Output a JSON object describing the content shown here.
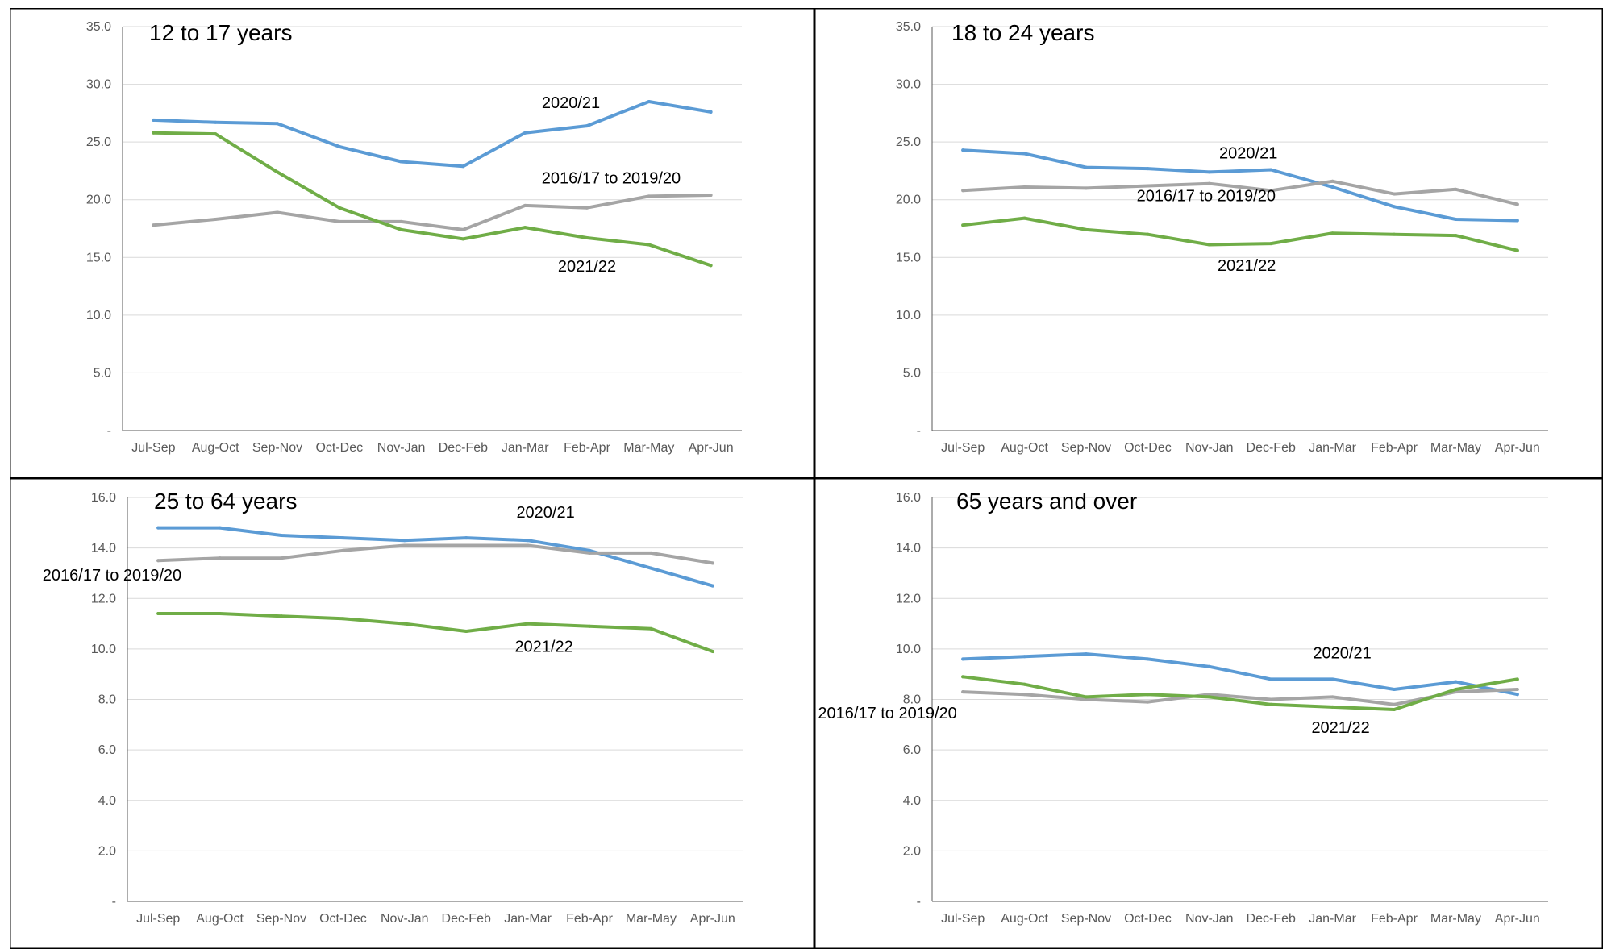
{
  "colors": {
    "2020/21": "#5b9bd5",
    "2016/17 to 2019/20": "#a5a5a5",
    "2021/22": "#70ad47",
    "grid": "#d9d9d9",
    "axis": "#595959",
    "border": "#000000"
  },
  "chart_data": [
    {
      "type": "line",
      "title": "12 to 17 years",
      "categories": [
        "Jul-Sep",
        "Aug-Oct",
        "Sep-Nov",
        "Oct-Dec",
        "Nov-Jan",
        "Dec-Feb",
        "Jan-Mar",
        "Feb-Apr",
        "Mar-May",
        "Apr-Jun"
      ],
      "ylim": [
        0,
        35
      ],
      "yticks": [
        0,
        5,
        10,
        15,
        20,
        25,
        30,
        35
      ],
      "ytick_labels": [
        "-",
        "5.0",
        "10.0",
        "15.0",
        "20.0",
        "25.0",
        "30.0",
        "35.0"
      ],
      "grid": true,
      "series": [
        {
          "name": "2020/21",
          "values": [
            26.9,
            26.7,
            26.6,
            24.6,
            23.3,
            22.9,
            25.8,
            26.4,
            28.5,
            27.6
          ]
        },
        {
          "name": "2016/17 to 2019/20",
          "values": [
            17.8,
            18.3,
            18.9,
            18.1,
            18.1,
            17.4,
            19.5,
            19.3,
            20.3,
            20.4
          ]
        },
        {
          "name": "2021/22",
          "values": [
            25.8,
            25.7,
            22.4,
            19.3,
            17.4,
            16.6,
            17.6,
            16.7,
            16.1,
            14.3
          ]
        }
      ],
      "series_labels": [
        {
          "text": "2020/21",
          "series": "2020/21",
          "index": 7
        },
        {
          "text": "2016/17 to 2019/20",
          "series": "2016/17 to 2019/20",
          "index": 7
        },
        {
          "text": "2021/22",
          "series": "2021/22",
          "index": 7
        }
      ]
    },
    {
      "type": "line",
      "title": "18 to 24 years",
      "categories": [
        "Jul-Sep",
        "Aug-Oct",
        "Sep-Nov",
        "Oct-Dec",
        "Nov-Jan",
        "Dec-Feb",
        "Jan-Mar",
        "Feb-Apr",
        "Mar-May",
        "Apr-Jun"
      ],
      "ylim": [
        0,
        35
      ],
      "yticks": [
        0,
        5,
        10,
        15,
        20,
        25,
        30,
        35
      ],
      "ytick_labels": [
        "-",
        "5.0",
        "10.0",
        "15.0",
        "20.0",
        "25.0",
        "30.0",
        "35.0"
      ],
      "grid": true,
      "series": [
        {
          "name": "2020/21",
          "values": [
            24.3,
            24.0,
            22.8,
            22.7,
            22.4,
            22.6,
            21.1,
            19.4,
            18.3,
            18.2
          ]
        },
        {
          "name": "2016/17 to 2019/20",
          "values": [
            20.8,
            21.1,
            21.0,
            21.2,
            21.4,
            20.8,
            21.6,
            20.5,
            20.9,
            19.6
          ]
        },
        {
          "name": "2021/22",
          "values": [
            17.8,
            18.4,
            17.4,
            17.0,
            16.1,
            16.2,
            17.1,
            17.0,
            16.9,
            15.6
          ]
        }
      ],
      "series_labels": [
        {
          "text": "2020/21",
          "series": "2020/21",
          "index": 5
        },
        {
          "text": "2016/17 to 2019/20",
          "series": "2016/17 to 2019/20",
          "index": 4
        },
        {
          "text": "2021/22",
          "series": "2021/22",
          "index": 5
        }
      ]
    },
    {
      "type": "line",
      "title": "25 to 64 years",
      "categories": [
        "Jul-Sep",
        "Aug-Oct",
        "Sep-Nov",
        "Oct-Dec",
        "Nov-Jan",
        "Dec-Feb",
        "Jan-Mar",
        "Feb-Apr",
        "Mar-May",
        "Apr-Jun"
      ],
      "ylim": [
        0,
        16
      ],
      "yticks": [
        0,
        2,
        4,
        6,
        8,
        10,
        12,
        14,
        16
      ],
      "ytick_labels": [
        "-",
        "2.0",
        "4.0",
        "6.0",
        "8.0",
        "10.0",
        "12.0",
        "14.0",
        "16.0"
      ],
      "grid": true,
      "series": [
        {
          "name": "2020/21",
          "values": [
            14.8,
            14.8,
            14.5,
            14.4,
            14.3,
            14.4,
            14.3,
            13.9,
            13.2,
            12.5
          ]
        },
        {
          "name": "2016/17 to 2019/20",
          "values": [
            13.5,
            13.6,
            13.6,
            13.9,
            14.1,
            14.1,
            14.1,
            13.8,
            13.8,
            13.4
          ]
        },
        {
          "name": "2021/22",
          "values": [
            11.4,
            11.4,
            11.3,
            11.2,
            11.0,
            10.7,
            11.0,
            10.9,
            10.8,
            9.9
          ]
        }
      ],
      "series_labels": [
        {
          "text": "2020/21",
          "series": "2020/21",
          "index": 6
        },
        {
          "text": "2016/17 to 2019/20",
          "series": "2016/17 to 2019/20",
          "index": 2
        },
        {
          "text": "2021/22",
          "series": "2021/22",
          "index": 6
        }
      ]
    },
    {
      "type": "line",
      "title": "65 years and over",
      "categories": [
        "Jul-Sep",
        "Aug-Oct",
        "Sep-Nov",
        "Oct-Dec",
        "Nov-Jan",
        "Dec-Feb",
        "Jan-Mar",
        "Feb-Apr",
        "Mar-May",
        "Apr-Jun"
      ],
      "ylim": [
        0,
        16
      ],
      "yticks": [
        0,
        2,
        4,
        6,
        8,
        10,
        12,
        14,
        16
      ],
      "ytick_labels": [
        "-",
        "2.0",
        "4.0",
        "6.0",
        "8.0",
        "10.0",
        "12.0",
        "14.0",
        "16.0"
      ],
      "grid": true,
      "series": [
        {
          "name": "2020/21",
          "values": [
            9.6,
            9.7,
            9.8,
            9.6,
            9.3,
            8.8,
            8.8,
            8.4,
            8.7,
            8.2
          ]
        },
        {
          "name": "2016/17 to 2019/20",
          "values": [
            8.3,
            8.2,
            8.0,
            7.9,
            8.2,
            8.0,
            8.1,
            7.8,
            8.3,
            8.4
          ]
        },
        {
          "name": "2021/22",
          "values": [
            8.9,
            8.6,
            8.1,
            8.2,
            8.1,
            7.8,
            7.7,
            7.6,
            8.4,
            8.8
          ]
        }
      ],
      "series_labels": [
        {
          "text": "2020/21",
          "series": "2020/21",
          "index": 6
        },
        {
          "text": "2016/17 to 2019/20",
          "series": "2016/17 to 2019/20",
          "index": 1
        },
        {
          "text": "2021/22",
          "series": "2021/22",
          "index": 6
        }
      ]
    }
  ]
}
